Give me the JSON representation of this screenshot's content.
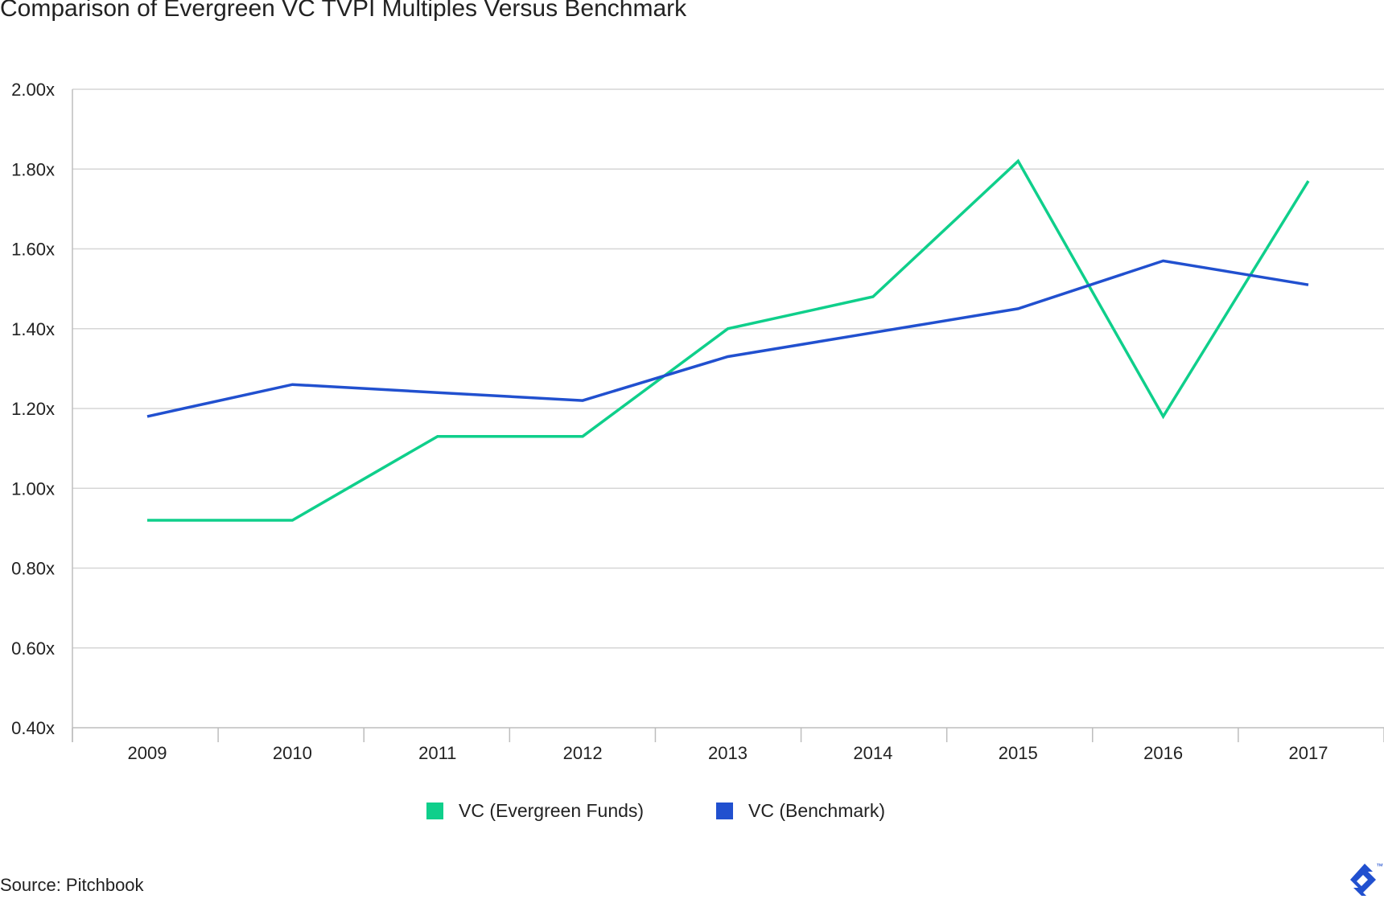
{
  "title": "Comparison of Evergreen VC TVPI Multiples Versus Benchmark",
  "source": "Source: Pitchbook",
  "logo": {
    "icon": "toptal-logo-icon",
    "trademark": "™"
  },
  "colors": {
    "evergreen": "#0fcf8b",
    "benchmark": "#2150cf",
    "grid": "#d6d6d6",
    "axis": "#bdbdbd"
  },
  "chart_data": {
    "type": "line",
    "title": "Comparison of Evergreen VC TVPI Multiples Versus Benchmark",
    "xlabel": "",
    "ylabel": "",
    "ylim": [
      0.4,
      2.0
    ],
    "yticks": [
      0.4,
      0.6,
      0.8,
      1.0,
      1.2,
      1.4,
      1.6,
      1.8,
      2.0
    ],
    "ytick_labels": [
      "0.40x",
      "0.60x",
      "0.80x",
      "1.00x",
      "1.20x",
      "1.40x",
      "1.60x",
      "1.80x",
      "2.00x"
    ],
    "categories": [
      "2009",
      "2010",
      "2011",
      "2012",
      "2013",
      "2014",
      "2015",
      "2016",
      "2017"
    ],
    "grid": true,
    "legend_position": "bottom-center",
    "series": [
      {
        "name": "VC (Evergreen Funds)",
        "color": "#0fcf8b",
        "values": [
          0.92,
          0.92,
          1.13,
          1.13,
          1.4,
          1.48,
          1.82,
          1.18,
          1.77
        ]
      },
      {
        "name": "VC (Benchmark)",
        "color": "#2150cf",
        "values": [
          1.18,
          1.26,
          1.24,
          1.22,
          1.33,
          1.39,
          1.45,
          1.57,
          1.51
        ]
      }
    ]
  }
}
